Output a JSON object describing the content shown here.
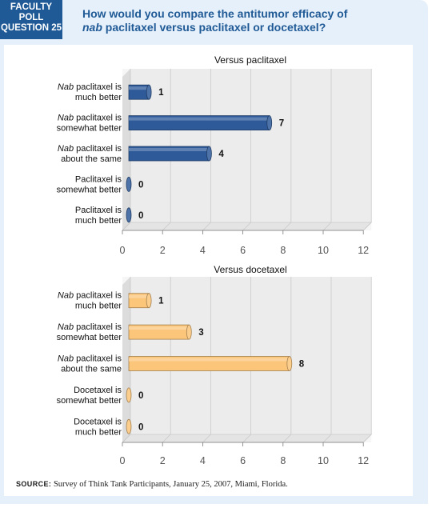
{
  "header": {
    "badge_lines": [
      "FACULTY",
      "POLL",
      "QUESTION 25"
    ],
    "question_line1": "How would you compare the antitumor efficacy of",
    "question_line2_italic": "nab",
    "question_line2_rest": " paclitaxel versus paclitaxel or docetaxel?"
  },
  "footer": {
    "source_label": "SOURCE:",
    "source_text": " Survey of Think Tank Participants, January 25, 2007, Miami, Florida."
  },
  "colors": {
    "header_bg": "#1f5a96",
    "frame_bg": "#e6f0fa",
    "series1_bar": "#2f5a9a",
    "series2_bar": "#fbc57a"
  },
  "chart_data": [
    {
      "type": "bar",
      "orientation": "horizontal",
      "title": "Versus paclitaxel",
      "categories": [
        {
          "italic": "Nab",
          "line1_rest": " paclitaxel is",
          "line2": "much better"
        },
        {
          "italic": "Nab",
          "line1_rest": " paclitaxel is",
          "line2": "somewhat better"
        },
        {
          "italic": "Nab",
          "line1_rest": " paclitaxel is",
          "line2": "about the same"
        },
        {
          "italic": "",
          "line1_rest": "Paclitaxel is",
          "line2": "somewhat better"
        },
        {
          "italic": "",
          "line1_rest": "Paclitaxel is",
          "line2": "much better"
        }
      ],
      "values": [
        1,
        7,
        4,
        0,
        0
      ],
      "xlim": [
        0,
        12
      ],
      "xticks": [
        0,
        2,
        4,
        6,
        8,
        10,
        12
      ],
      "grid": true,
      "color": "#2f5a9a"
    },
    {
      "type": "bar",
      "orientation": "horizontal",
      "title": "Versus docetaxel",
      "categories": [
        {
          "italic": "Nab",
          "line1_rest": " paclitaxel is",
          "line2": "much better"
        },
        {
          "italic": "Nab",
          "line1_rest": " paclitaxel is",
          "line2": "somewhat better"
        },
        {
          "italic": "Nab",
          "line1_rest": " paclitaxel is",
          "line2": "about the same"
        },
        {
          "italic": "",
          "line1_rest": "Docetaxel is",
          "line2": "somewhat better"
        },
        {
          "italic": "",
          "line1_rest": "Docetaxel is",
          "line2": "much better"
        }
      ],
      "values": [
        1,
        3,
        8,
        0,
        0
      ],
      "xlim": [
        0,
        12
      ],
      "xticks": [
        0,
        2,
        4,
        6,
        8,
        10,
        12
      ],
      "grid": true,
      "color": "#fbc57a"
    }
  ]
}
